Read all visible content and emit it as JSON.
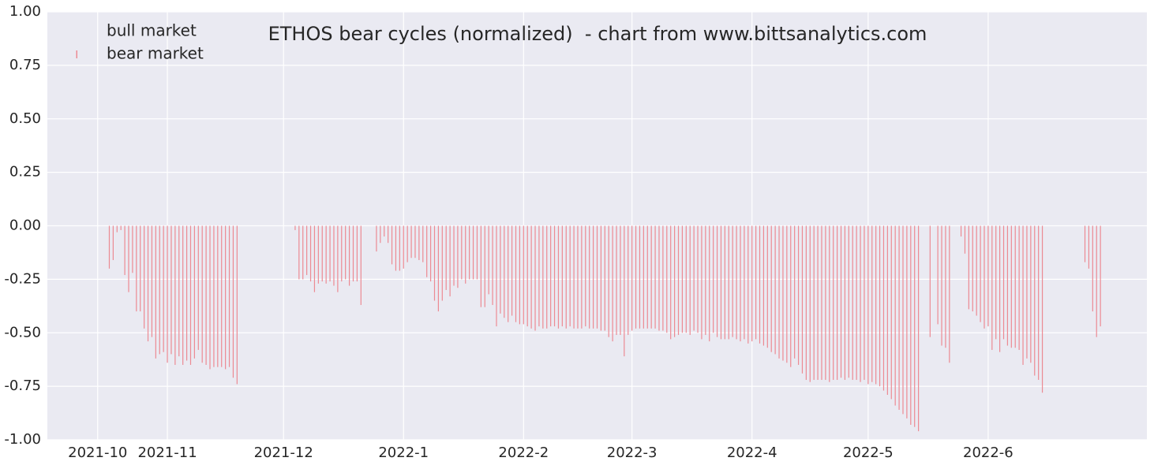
{
  "chart_data": {
    "type": "bar",
    "title": "ETHOS bear cycles (normalized)  - chart from www.bittsanalytics.com",
    "xlim": [
      0,
      284
    ],
    "xticks": [
      {
        "value": 13,
        "label": "2021-10"
      },
      {
        "value": 31,
        "label": "2021-11"
      },
      {
        "value": 61,
        "label": "2021-12"
      },
      {
        "value": 92,
        "label": "2022-1"
      },
      {
        "value": 123,
        "label": "2022-2"
      },
      {
        "value": 151,
        "label": "2022-3"
      },
      {
        "value": 182,
        "label": "2022-4"
      },
      {
        "value": 212,
        "label": "2022-5"
      },
      {
        "value": 243,
        "label": "2022-6"
      }
    ],
    "ylim": [
      -1,
      1
    ],
    "yticks": [
      {
        "value": -1,
        "label": "-1.00"
      },
      {
        "value": -0.75,
        "label": "-0.75"
      },
      {
        "value": -0.5,
        "label": "-0.50"
      },
      {
        "value": -0.25,
        "label": "-0.25"
      },
      {
        "value": 0,
        "label": "0.00"
      },
      {
        "value": 0.25,
        "label": "0.25"
      },
      {
        "value": 0.5,
        "label": "0.50"
      },
      {
        "value": 0.75,
        "label": "0.75"
      },
      {
        "value": 1,
        "label": "1.00"
      }
    ],
    "grid": true,
    "legend": "upper left",
    "series": [
      {
        "name": "bull market",
        "x": [],
        "values": []
      },
      {
        "name": "bear market",
        "color": "#ec8a93",
        "x": [
          16,
          17,
          18,
          19,
          20,
          21,
          22,
          23,
          24,
          25,
          26,
          27,
          28,
          29,
          30,
          31,
          32,
          33,
          34,
          35,
          36,
          37,
          38,
          39,
          40,
          41,
          42,
          43,
          44,
          45,
          46,
          47,
          48,
          49,
          64,
          65,
          66,
          67,
          68,
          69,
          70,
          71,
          72,
          73,
          74,
          75,
          76,
          77,
          78,
          79,
          80,
          81,
          85,
          86,
          87,
          88,
          89,
          90,
          91,
          92,
          93,
          94,
          95,
          96,
          97,
          98,
          99,
          100,
          101,
          102,
          103,
          104,
          105,
          106,
          107,
          108,
          109,
          110,
          111,
          112,
          113,
          114,
          115,
          116,
          117,
          118,
          119,
          120,
          121,
          122,
          123,
          124,
          125,
          126,
          127,
          128,
          129,
          130,
          131,
          132,
          133,
          134,
          135,
          136,
          137,
          138,
          139,
          140,
          141,
          142,
          143,
          144,
          145,
          146,
          147,
          148,
          149,
          150,
          151,
          152,
          153,
          154,
          155,
          156,
          157,
          158,
          159,
          160,
          161,
          162,
          163,
          164,
          165,
          166,
          167,
          168,
          169,
          170,
          171,
          172,
          173,
          174,
          175,
          176,
          177,
          178,
          179,
          180,
          181,
          182,
          183,
          184,
          185,
          186,
          187,
          188,
          189,
          190,
          191,
          192,
          193,
          194,
          195,
          196,
          197,
          198,
          199,
          200,
          201,
          202,
          203,
          204,
          205,
          206,
          207,
          208,
          209,
          210,
          211,
          212,
          213,
          214,
          215,
          216,
          217,
          218,
          219,
          220,
          221,
          222,
          223,
          224,
          225,
          228,
          230,
          231,
          232,
          233,
          236,
          237,
          238,
          239,
          240,
          241,
          242,
          243,
          244,
          245,
          246,
          247,
          248,
          249,
          250,
          251,
          252,
          253,
          254,
          255,
          256,
          257,
          268,
          269,
          270,
          271,
          272
        ],
        "values": [
          -0.2,
          -0.16,
          -0.03,
          -0.02,
          -0.23,
          -0.31,
          -0.22,
          -0.4,
          -0.4,
          -0.48,
          -0.54,
          -0.52,
          -0.62,
          -0.6,
          -0.59,
          -0.64,
          -0.6,
          -0.65,
          -0.61,
          -0.65,
          -0.63,
          -0.65,
          -0.62,
          -0.58,
          -0.64,
          -0.65,
          -0.67,
          -0.66,
          -0.66,
          -0.66,
          -0.67,
          -0.66,
          -0.71,
          -0.74,
          -0.02,
          -0.25,
          -0.25,
          -0.23,
          -0.26,
          -0.31,
          -0.27,
          -0.26,
          -0.27,
          -0.26,
          -0.28,
          -0.31,
          -0.26,
          -0.25,
          -0.28,
          -0.26,
          -0.26,
          -0.37,
          -0.12,
          -0.08,
          -0.05,
          -0.08,
          -0.18,
          -0.21,
          -0.21,
          -0.2,
          -0.17,
          -0.15,
          -0.15,
          -0.16,
          -0.17,
          -0.24,
          -0.26,
          -0.35,
          -0.4,
          -0.35,
          -0.3,
          -0.33,
          -0.28,
          -0.29,
          -0.25,
          -0.27,
          -0.25,
          -0.25,
          -0.25,
          -0.38,
          -0.38,
          -0.32,
          -0.37,
          -0.47,
          -0.41,
          -0.43,
          -0.45,
          -0.42,
          -0.45,
          -0.46,
          -0.46,
          -0.47,
          -0.48,
          -0.49,
          -0.47,
          -0.48,
          -0.48,
          -0.47,
          -0.47,
          -0.48,
          -0.47,
          -0.48,
          -0.47,
          -0.48,
          -0.48,
          -0.48,
          -0.47,
          -0.48,
          -0.48,
          -0.48,
          -0.49,
          -0.49,
          -0.52,
          -0.54,
          -0.51,
          -0.51,
          -0.61,
          -0.51,
          -0.49,
          -0.48,
          -0.48,
          -0.48,
          -0.48,
          -0.48,
          -0.48,
          -0.49,
          -0.49,
          -0.5,
          -0.53,
          -0.52,
          -0.51,
          -0.5,
          -0.5,
          -0.51,
          -0.49,
          -0.5,
          -0.53,
          -0.51,
          -0.54,
          -0.5,
          -0.52,
          -0.53,
          -0.53,
          -0.53,
          -0.52,
          -0.53,
          -0.54,
          -0.53,
          -0.55,
          -0.54,
          -0.53,
          -0.55,
          -0.56,
          -0.57,
          -0.59,
          -0.6,
          -0.62,
          -0.63,
          -0.64,
          -0.66,
          -0.62,
          -0.65,
          -0.69,
          -0.72,
          -0.73,
          -0.72,
          -0.72,
          -0.72,
          -0.72,
          -0.73,
          -0.72,
          -0.72,
          -0.71,
          -0.72,
          -0.71,
          -0.72,
          -0.72,
          -0.73,
          -0.72,
          -0.74,
          -0.73,
          -0.74,
          -0.75,
          -0.77,
          -0.79,
          -0.81,
          -0.84,
          -0.86,
          -0.88,
          -0.9,
          -0.93,
          -0.94,
          -0.96,
          -0.52,
          -0.46,
          -0.56,
          -0.57,
          -0.64,
          -0.05,
          -0.13,
          -0.39,
          -0.4,
          -0.42,
          -0.45,
          -0.48,
          -0.47,
          -0.58,
          -0.53,
          -0.59,
          -0.53,
          -0.56,
          -0.57,
          -0.57,
          -0.58,
          -0.65,
          -0.62,
          -0.64,
          -0.7,
          -0.72,
          -0.78,
          -0.17,
          -0.2,
          -0.4,
          -0.52,
          -0.47
        ]
      }
    ]
  }
}
